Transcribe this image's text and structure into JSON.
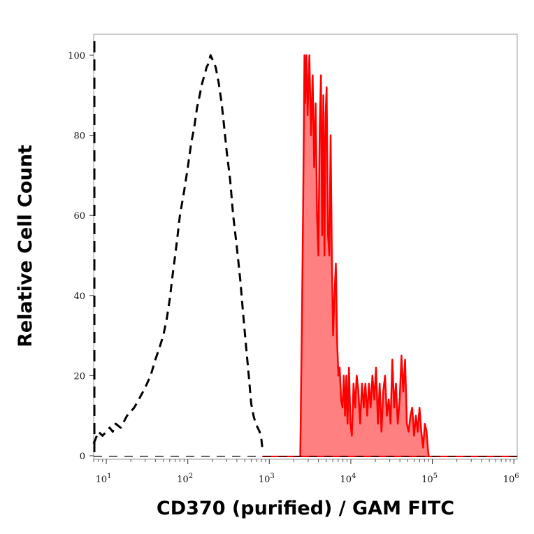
{
  "chart_data": {
    "type": "area",
    "title": "",
    "xlabel": "CD370 (purified) / GAM FITC",
    "ylabel": "Relative Cell Count",
    "x_scale": "log",
    "xlim": [
      7,
      1100000
    ],
    "ylim": [
      0,
      100
    ],
    "y_ticks": [
      0,
      20,
      40,
      60,
      80,
      100
    ],
    "x_ticks": [
      {
        "base": "10",
        "exp": "1",
        "value": 10
      },
      {
        "base": "10",
        "exp": "2",
        "value": 100
      },
      {
        "base": "10",
        "exp": "3",
        "value": 1000
      },
      {
        "base": "10",
        "exp": "4",
        "value": 10000
      },
      {
        "base": "10",
        "exp": "5",
        "value": 100000
      },
      {
        "base": "10",
        "exp": "6",
        "value": 1000000
      }
    ],
    "grid": false,
    "legend": "none",
    "series": [
      {
        "style": "dashed",
        "color": "#000000",
        "fill": "none",
        "points": [
          [
            7,
            3
          ],
          [
            8,
            6
          ],
          [
            9,
            5
          ],
          [
            10,
            6
          ],
          [
            11,
            7
          ],
          [
            12,
            6
          ],
          [
            13,
            8
          ],
          [
            15,
            7
          ],
          [
            18,
            10
          ],
          [
            22,
            12
          ],
          [
            25,
            14
          ],
          [
            30,
            17
          ],
          [
            35,
            20
          ],
          [
            40,
            24
          ],
          [
            45,
            27
          ],
          [
            50,
            30
          ],
          [
            55,
            34
          ],
          [
            60,
            39
          ],
          [
            65,
            45
          ],
          [
            70,
            50
          ],
          [
            75,
            55
          ],
          [
            80,
            60
          ],
          [
            90,
            66
          ],
          [
            100,
            72
          ],
          [
            110,
            78
          ],
          [
            120,
            82
          ],
          [
            130,
            87
          ],
          [
            140,
            90
          ],
          [
            150,
            93
          ],
          [
            160,
            95
          ],
          [
            170,
            97
          ],
          [
            180,
            98
          ],
          [
            190,
            100
          ],
          [
            200,
            99
          ],
          [
            220,
            97
          ],
          [
            240,
            93
          ],
          [
            260,
            88
          ],
          [
            280,
            82
          ],
          [
            300,
            76
          ],
          [
            330,
            69
          ],
          [
            360,
            60
          ],
          [
            400,
            52
          ],
          [
            440,
            44
          ],
          [
            480,
            35
          ],
          [
            520,
            27
          ],
          [
            560,
            20
          ],
          [
            600,
            13
          ],
          [
            640,
            10
          ],
          [
            680,
            8
          ],
          [
            720,
            7
          ],
          [
            760,
            6
          ],
          [
            800,
            4
          ],
          [
            820,
            2
          ]
        ]
      },
      {
        "style": "solid",
        "color": "#ff0000",
        "fill": "#ff8080",
        "points": [
          [
            2400,
            0
          ],
          [
            2500,
            30
          ],
          [
            2600,
            62
          ],
          [
            2700,
            100
          ],
          [
            2750,
            88
          ],
          [
            2850,
            100
          ],
          [
            2950,
            85
          ],
          [
            3100,
            100
          ],
          [
            3250,
            80
          ],
          [
            3400,
            95
          ],
          [
            3550,
            72
          ],
          [
            3700,
            88
          ],
          [
            3850,
            60
          ],
          [
            4000,
            50
          ],
          [
            4150,
            82
          ],
          [
            4300,
            95
          ],
          [
            4450,
            55
          ],
          [
            4600,
            90
          ],
          [
            4750,
            50
          ],
          [
            4900,
            85
          ],
          [
            5050,
            92
          ],
          [
            5250,
            55
          ],
          [
            5450,
            50
          ],
          [
            5650,
            80
          ],
          [
            5850,
            50
          ],
          [
            6050,
            30
          ],
          [
            6300,
            40
          ],
          [
            6550,
            48
          ],
          [
            6800,
            28
          ],
          [
            7050,
            20
          ],
          [
            7300,
            22
          ],
          [
            7600,
            14
          ],
          [
            7900,
            12
          ],
          [
            8200,
            20
          ],
          [
            8500,
            10
          ],
          [
            8800,
            20
          ],
          [
            9100,
            8
          ],
          [
            9500,
            22
          ],
          [
            9900,
            8
          ],
          [
            10300,
            5
          ],
          [
            10800,
            18
          ],
          [
            11300,
            12
          ],
          [
            11800,
            20
          ],
          [
            12400,
            16
          ],
          [
            13000,
            8
          ],
          [
            13700,
            18
          ],
          [
            14400,
            12
          ],
          [
            15100,
            18
          ],
          [
            15900,
            10
          ],
          [
            16700,
            18
          ],
          [
            17500,
            12
          ],
          [
            18400,
            20
          ],
          [
            19400,
            14
          ],
          [
            20400,
            22
          ],
          [
            21500,
            8
          ],
          [
            22600,
            18
          ],
          [
            23800,
            6
          ],
          [
            25000,
            16
          ],
          [
            26300,
            20
          ],
          [
            27700,
            10
          ],
          [
            29200,
            14
          ],
          [
            30700,
            8
          ],
          [
            32300,
            24
          ],
          [
            34000,
            12
          ],
          [
            35800,
            18
          ],
          [
            37700,
            8
          ],
          [
            39700,
            14
          ],
          [
            41800,
            25
          ],
          [
            44000,
            16
          ],
          [
            46300,
            24
          ],
          [
            48700,
            8
          ],
          [
            51200,
            6
          ],
          [
            53900,
            10
          ],
          [
            56700,
            12
          ],
          [
            59700,
            5
          ],
          [
            62800,
            10
          ],
          [
            66100,
            6
          ],
          [
            69600,
            12
          ],
          [
            73200,
            6
          ],
          [
            77000,
            2
          ],
          [
            81000,
            8
          ],
          [
            85000,
            6
          ],
          [
            88000,
            2
          ],
          [
            90000,
            0
          ]
        ]
      }
    ]
  }
}
